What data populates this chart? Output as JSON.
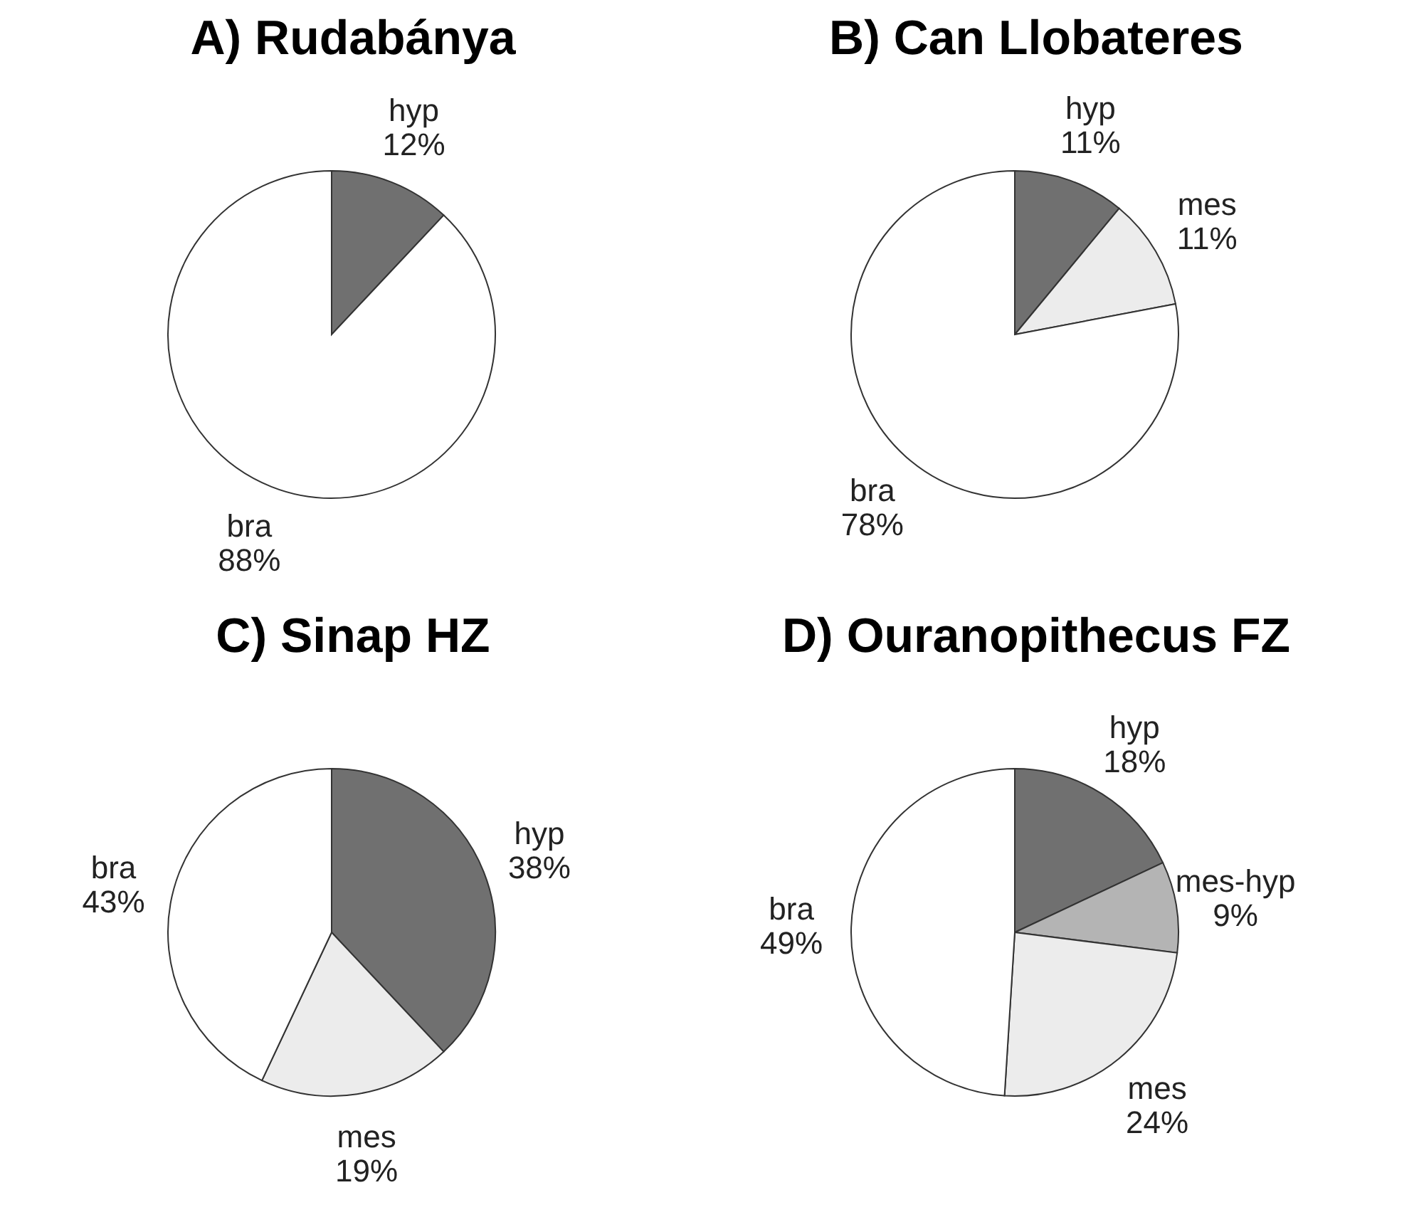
{
  "chart_data": [
    {
      "type": "pie",
      "title": "A) Rudabánya",
      "categories": [
        "hyp",
        "bra"
      ],
      "values": [
        12,
        88
      ],
      "value_labels": [
        "12%",
        "88%"
      ],
      "colors": [
        "#707070",
        "#ffffff"
      ]
    },
    {
      "type": "pie",
      "title": "B) Can Llobateres",
      "categories": [
        "hyp",
        "mes",
        "bra"
      ],
      "values": [
        11,
        11,
        78
      ],
      "value_labels": [
        "11%",
        "11%",
        "78%"
      ],
      "colors": [
        "#707070",
        "#ececec",
        "#ffffff"
      ]
    },
    {
      "type": "pie",
      "title": "C) Sinap HZ",
      "categories": [
        "hyp",
        "mes",
        "bra"
      ],
      "values": [
        38,
        19,
        43
      ],
      "value_labels": [
        "38%",
        "19%",
        "43%"
      ],
      "colors": [
        "#707070",
        "#ececec",
        "#ffffff"
      ]
    },
    {
      "type": "pie",
      "title": "D) Ouranopithecus FZ",
      "categories": [
        "hyp",
        "mes-hyp",
        "mes",
        "bra"
      ],
      "values": [
        18,
        9,
        24,
        49
      ],
      "value_labels": [
        "18%",
        "9%",
        "24%",
        "49%"
      ],
      "colors": [
        "#707070",
        "#b4b4b4",
        "#ececec",
        "#ffffff"
      ]
    }
  ]
}
